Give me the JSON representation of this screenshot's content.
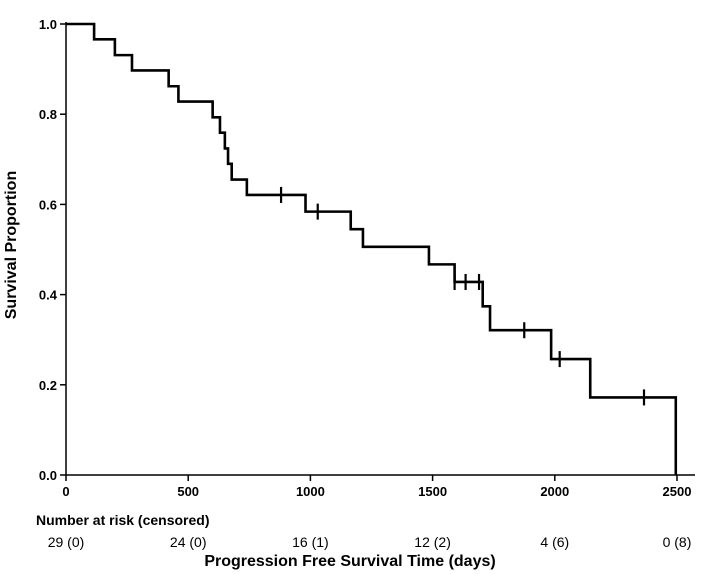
{
  "chart_data": {
    "type": "line",
    "subtype": "kaplan-meier-step",
    "title": "",
    "xlabel": "Progression Free Survival Time (days)",
    "ylabel": "Survival Proportion",
    "xlim": [
      0,
      2500
    ],
    "ylim": [
      0,
      1.0
    ],
    "x_ticks": [
      0,
      500,
      1000,
      1500,
      2000,
      2500
    ],
    "y_ticks": [
      0.0,
      0.2,
      0.4,
      0.6,
      0.8,
      1.0
    ],
    "x_tick_labels": [
      "0",
      "500",
      "1000",
      "1500",
      "2000",
      "2500"
    ],
    "y_tick_labels": [
      "0.0",
      "0.2",
      "0.4",
      "0.6",
      "0.8",
      "1.0"
    ],
    "grid": false,
    "legend": "none",
    "line_color": "#000000",
    "series": [
      {
        "steps": [
          {
            "x": 0,
            "y": 1.0
          },
          {
            "x": 115,
            "y": 0.966
          },
          {
            "x": 200,
            "y": 0.931
          },
          {
            "x": 270,
            "y": 0.897
          },
          {
            "x": 420,
            "y": 0.862
          },
          {
            "x": 460,
            "y": 0.828
          },
          {
            "x": 600,
            "y": 0.793
          },
          {
            "x": 630,
            "y": 0.759
          },
          {
            "x": 650,
            "y": 0.724
          },
          {
            "x": 663,
            "y": 0.69
          },
          {
            "x": 678,
            "y": 0.655
          },
          {
            "x": 740,
            "y": 0.621
          },
          {
            "x": 980,
            "y": 0.584
          },
          {
            "x": 1165,
            "y": 0.545
          },
          {
            "x": 1215,
            "y": 0.506
          },
          {
            "x": 1485,
            "y": 0.467
          },
          {
            "x": 1590,
            "y": 0.428
          },
          {
            "x": 1705,
            "y": 0.374
          },
          {
            "x": 1735,
            "y": 0.321
          },
          {
            "x": 1985,
            "y": 0.257
          },
          {
            "x": 2145,
            "y": 0.172
          },
          {
            "x": 2495,
            "y": 0.0
          }
        ],
        "end_x": 2495,
        "censored": [
          {
            "x": 880,
            "y": 0.621
          },
          {
            "x": 1030,
            "y": 0.584
          },
          {
            "x": 1590,
            "y": 0.428
          },
          {
            "x": 1635,
            "y": 0.428
          },
          {
            "x": 1690,
            "y": 0.428
          },
          {
            "x": 1875,
            "y": 0.321
          },
          {
            "x": 2020,
            "y": 0.257
          },
          {
            "x": 2365,
            "y": 0.172
          }
        ]
      }
    ],
    "risk_table": {
      "title": "Number at risk (censored)",
      "times": [
        0,
        500,
        1000,
        1500,
        2000,
        2500
      ],
      "labels": [
        "29 (0)",
        "24 (0)",
        "16 (1)",
        "12 (2)",
        "4 (6)",
        "0 (8)"
      ]
    }
  }
}
